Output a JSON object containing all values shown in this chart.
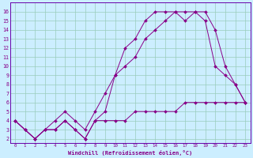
{
  "xlabel": "Windchill (Refroidissement éolien,°C)",
  "bg_color": "#cceeff",
  "line_color": "#880088",
  "grid_color": "#99ccbb",
  "spine_color": "#6600aa",
  "xlim": [
    -0.5,
    23.5
  ],
  "ylim": [
    1.5,
    17.0
  ],
  "xticks": [
    0,
    1,
    2,
    3,
    4,
    5,
    6,
    7,
    8,
    9,
    10,
    11,
    12,
    13,
    14,
    15,
    16,
    17,
    18,
    19,
    20,
    21,
    22,
    23
  ],
  "yticks": [
    2,
    3,
    4,
    5,
    6,
    7,
    8,
    9,
    10,
    11,
    12,
    13,
    14,
    15,
    16
  ],
  "line1_x": [
    0,
    1,
    2,
    3,
    4,
    5,
    6,
    7,
    8,
    9,
    10,
    11,
    12,
    13,
    14,
    15,
    16,
    17,
    18,
    19,
    20,
    21,
    22,
    23
  ],
  "line1_y": [
    4,
    3,
    2,
    3,
    3,
    4,
    3,
    2,
    4,
    4,
    4,
    4,
    5,
    5,
    5,
    5,
    5,
    6,
    6,
    6,
    6,
    6,
    6,
    6
  ],
  "line2_x": [
    0,
    1,
    2,
    3,
    4,
    5,
    6,
    7,
    8,
    9,
    10,
    11,
    12,
    13,
    14,
    15,
    16,
    17,
    18,
    19,
    20,
    21,
    22,
    23
  ],
  "line2_y": [
    4,
    3,
    2,
    3,
    3,
    4,
    3,
    2,
    4,
    5,
    9,
    12,
    13,
    15,
    16,
    16,
    16,
    15,
    16,
    15,
    10,
    9,
    8,
    6
  ],
  "line3_x": [
    0,
    1,
    2,
    3,
    4,
    5,
    6,
    7,
    8,
    9,
    10,
    11,
    12,
    13,
    14,
    15,
    16,
    17,
    18,
    19,
    20,
    21,
    22,
    23
  ],
  "line3_y": [
    4,
    3,
    2,
    3,
    4,
    5,
    4,
    3,
    5,
    7,
    9,
    10,
    11,
    13,
    14,
    15,
    16,
    16,
    16,
    16,
    14,
    10,
    8,
    6
  ]
}
